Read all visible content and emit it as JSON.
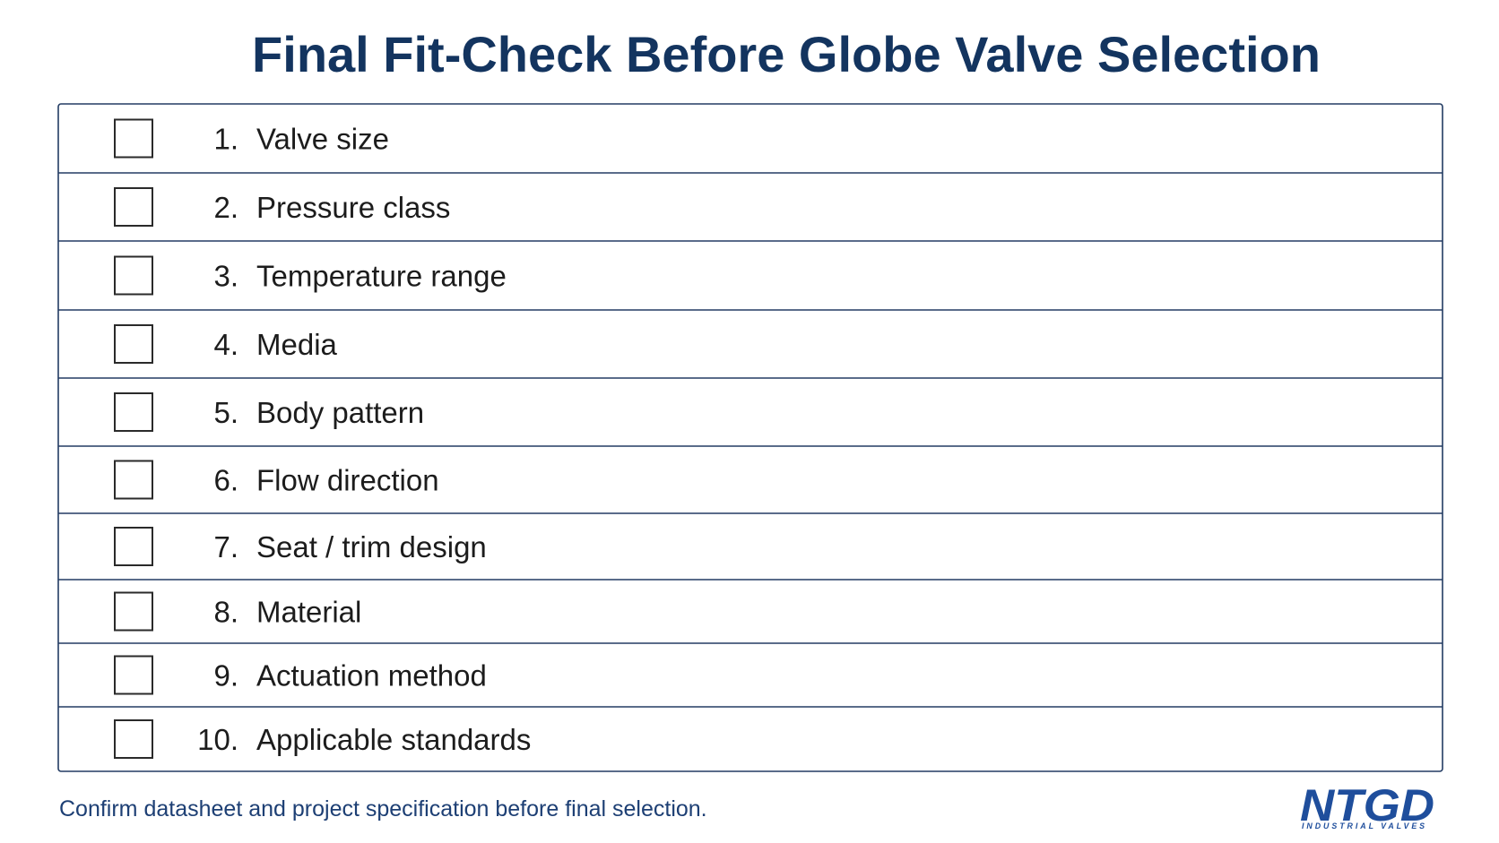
{
  "header": {
    "title": "Final Fit-Check Before Globe Valve Selection"
  },
  "items": [
    {
      "number": "1.",
      "label": "Valve size"
    },
    {
      "number": "2.",
      "label": "Pressure class"
    },
    {
      "number": "3.",
      "label": "Temperature range"
    },
    {
      "number": "4.",
      "label": "Media"
    },
    {
      "number": "5.",
      "label": "Body pattern"
    },
    {
      "number": "6.",
      "label": "Flow direction"
    },
    {
      "number": "7.",
      "label": "Seat / trim design"
    },
    {
      "number": "8.",
      "label": "Material"
    },
    {
      "number": "9.",
      "label": "Actuation method"
    },
    {
      "number": "10.",
      "label": "Applicable standards"
    }
  ],
  "footer": {
    "note": "Confirm datasheet and project specification before final selection.",
    "logo": {
      "name": "NTGD",
      "tagline": "INDUSTRIAL VALVES"
    }
  }
}
